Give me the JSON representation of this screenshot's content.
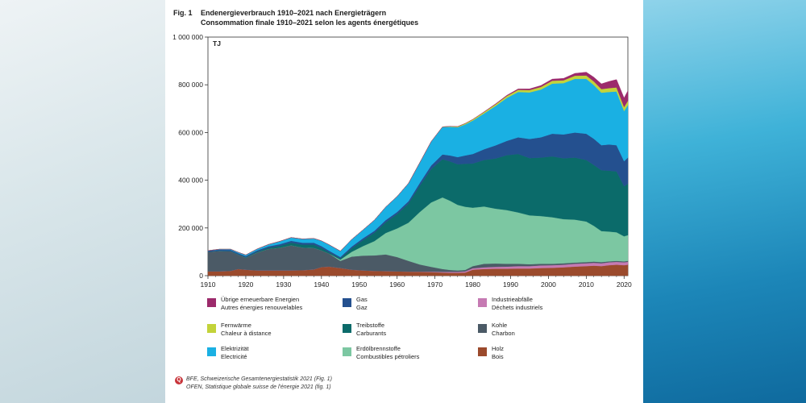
{
  "figure": {
    "number": "Fig. 1",
    "title_de": "Endenergieverbrauch 1910–2021 nach Energieträgern",
    "title_fr": "Consommation finale 1910–2021 selon les agents énergétiques"
  },
  "source": {
    "line1": "BFE, Schweizerische Gesamtenergiestatistik 2021 (Fig. 1)",
    "line2": "OFEN, Statistique globale suisse de l'énergie 2021 (fig. 1)"
  },
  "legend": [
    {
      "de": "Übrige erneuerbare Energien",
      "fr": "Autres énergies renouvelables",
      "color": "#9c2a6b"
    },
    {
      "de": "Gas",
      "fr": "Gaz",
      "color": "#24508f"
    },
    {
      "de": "Industrieabfälle",
      "fr": "Déchets industriels",
      "color": "#c67ab3"
    },
    {
      "de": "Fernwärme",
      "fr": "Chaleur à distance",
      "color": "#c3d33a"
    },
    {
      "de": "Treibstoffe",
      "fr": "Carburants",
      "color": "#0b6b6a"
    },
    {
      "de": "Kohle",
      "fr": "Charbon",
      "color": "#4b5a66"
    },
    {
      "de": "Elektrizität",
      "fr": "Electricité",
      "color": "#1ab0e3"
    },
    {
      "de": "Erdölbrennstoffe",
      "fr": "Combustibles pétroliers",
      "color": "#7cc7a2"
    },
    {
      "de": "Holz",
      "fr": "Bois",
      "color": "#9b4a2c"
    }
  ],
  "chart_data": {
    "type": "area",
    "stacked": true,
    "unit_label": "TJ",
    "ylim": [
      0,
      1000000
    ],
    "y_ticks": [
      0,
      200000,
      400000,
      600000,
      800000,
      1000000
    ],
    "y_tick_labels": [
      "0",
      "200 000",
      "400 000",
      "600 000",
      "800 000",
      "1 000 000"
    ],
    "xlim": [
      1910,
      2021
    ],
    "x_ticks": [
      1910,
      1920,
      1930,
      1940,
      1950,
      1960,
      1970,
      1980,
      1990,
      2000,
      2010,
      2020
    ],
    "x": [
      1910,
      1913,
      1916,
      1918,
      1920,
      1923,
      1926,
      1929,
      1932,
      1935,
      1938,
      1940,
      1942,
      1945,
      1948,
      1951,
      1954,
      1957,
      1960,
      1963,
      1966,
      1969,
      1972,
      1974,
      1976,
      1978,
      1980,
      1983,
      1986,
      1989,
      1992,
      1995,
      1998,
      2001,
      2004,
      2007,
      2010,
      2012,
      2014,
      2016,
      2018,
      2020,
      2021
    ],
    "series": [
      {
        "name": "Holz",
        "color": "#9b4a2c",
        "values": [
          18000,
          18000,
          20000,
          28000,
          25000,
          22000,
          22000,
          22000,
          22000,
          23000,
          26000,
          36000,
          38000,
          32000,
          25000,
          22000,
          20000,
          19000,
          18000,
          17000,
          16000,
          15000,
          13000,
          12000,
          12000,
          13000,
          25000,
          28000,
          29000,
          29000,
          30000,
          30000,
          32000,
          33000,
          35000,
          38000,
          40000,
          42000,
          40000,
          44000,
          46000,
          44000,
          46000
        ]
      },
      {
        "name": "Industrieabfälle",
        "color": "#c67ab3",
        "values": [
          0,
          0,
          0,
          0,
          0,
          0,
          0,
          0,
          0,
          0,
          0,
          0,
          0,
          0,
          0,
          0,
          0,
          0,
          0,
          0,
          1000,
          2000,
          3000,
          4000,
          4000,
          5000,
          6000,
          7000,
          8000,
          9000,
          10000,
          10000,
          11000,
          11000,
          11000,
          12000,
          12000,
          12000,
          12000,
          12000,
          12000,
          12000,
          12000
        ]
      },
      {
        "name": "Kohle",
        "color": "#4b5a66",
        "values": [
          82000,
          85000,
          82000,
          60000,
          50000,
          75000,
          90000,
          95000,
          105000,
          95000,
          90000,
          70000,
          55000,
          30000,
          55000,
          62000,
          65000,
          70000,
          60000,
          45000,
          30000,
          20000,
          12000,
          8000,
          6000,
          6000,
          9000,
          15000,
          14000,
          12000,
          10000,
          8000,
          7000,
          6000,
          6000,
          5000,
          5000,
          5000,
          5000,
          4000,
          4000,
          4000,
          4000
        ]
      },
      {
        "name": "Erdölbrennstoffe",
        "color": "#7cc7a2",
        "values": [
          0,
          0,
          0,
          0,
          0,
          0,
          0,
          0,
          0,
          0,
          0,
          0,
          0,
          5000,
          20000,
          40000,
          60000,
          90000,
          120000,
          160000,
          220000,
          270000,
          300000,
          290000,
          275000,
          265000,
          245000,
          240000,
          230000,
          225000,
          215000,
          205000,
          200000,
          195000,
          185000,
          180000,
          170000,
          150000,
          130000,
          125000,
          120000,
          105000,
          108000
        ]
      },
      {
        "name": "Treibstoffe",
        "color": "#0b6b6a",
        "values": [
          0,
          1000,
          1000,
          1000,
          2000,
          3000,
          5000,
          8000,
          11000,
          12000,
          14000,
          10000,
          5000,
          5000,
          15000,
          25000,
          35000,
          45000,
          60000,
          80000,
          110000,
          140000,
          160000,
          165000,
          170000,
          180000,
          185000,
          195000,
          210000,
          230000,
          245000,
          240000,
          245000,
          255000,
          255000,
          260000,
          258000,
          255000,
          255000,
          255000,
          255000,
          210000,
          215000
        ]
      },
      {
        "name": "Gas",
        "color": "#24508f",
        "values": [
          5000,
          5000,
          5000,
          5000,
          5000,
          6000,
          6000,
          7000,
          8000,
          8000,
          8000,
          8000,
          7000,
          6000,
          7000,
          8000,
          8000,
          9000,
          9000,
          10000,
          12000,
          15000,
          20000,
          25000,
          30000,
          35000,
          40000,
          45000,
          55000,
          60000,
          70000,
          80000,
          85000,
          95000,
          100000,
          105000,
          110000,
          110000,
          105000,
          110000,
          110000,
          105000,
          110000
        ]
      },
      {
        "name": "Elektrizität",
        "color": "#1ab0e3",
        "values": [
          0,
          2000,
          3000,
          4000,
          5000,
          6000,
          8000,
          12000,
          14000,
          16000,
          18000,
          22000,
          25000,
          25000,
          30000,
          35000,
          45000,
          55000,
          65000,
          75000,
          85000,
          100000,
          115000,
          120000,
          125000,
          130000,
          140000,
          150000,
          165000,
          180000,
          190000,
          195000,
          200000,
          210000,
          215000,
          225000,
          230000,
          225000,
          220000,
          220000,
          225000,
          210000,
          220000
        ]
      },
      {
        "name": "Fernwärme",
        "color": "#c3d33a",
        "values": [
          0,
          0,
          0,
          0,
          0,
          0,
          0,
          0,
          0,
          0,
          0,
          0,
          0,
          0,
          0,
          0,
          0,
          0,
          0,
          0,
          0,
          0,
          1000,
          2000,
          3000,
          4000,
          5000,
          6000,
          7000,
          8000,
          9000,
          10000,
          11000,
          12000,
          12000,
          13000,
          14000,
          15000,
          15000,
          16000,
          17000,
          17000,
          18000
        ]
      },
      {
        "name": "Übrige erneuerbare Energien",
        "color": "#9c2a6b",
        "values": [
          0,
          0,
          0,
          0,
          0,
          0,
          0,
          0,
          0,
          0,
          0,
          0,
          0,
          0,
          0,
          0,
          0,
          0,
          0,
          0,
          0,
          0,
          0,
          0,
          0,
          0,
          0,
          1000,
          2000,
          3000,
          4000,
          5000,
          6000,
          7000,
          8000,
          10000,
          14000,
          18000,
          22000,
          28000,
          33000,
          38000,
          42000
        ]
      }
    ]
  }
}
